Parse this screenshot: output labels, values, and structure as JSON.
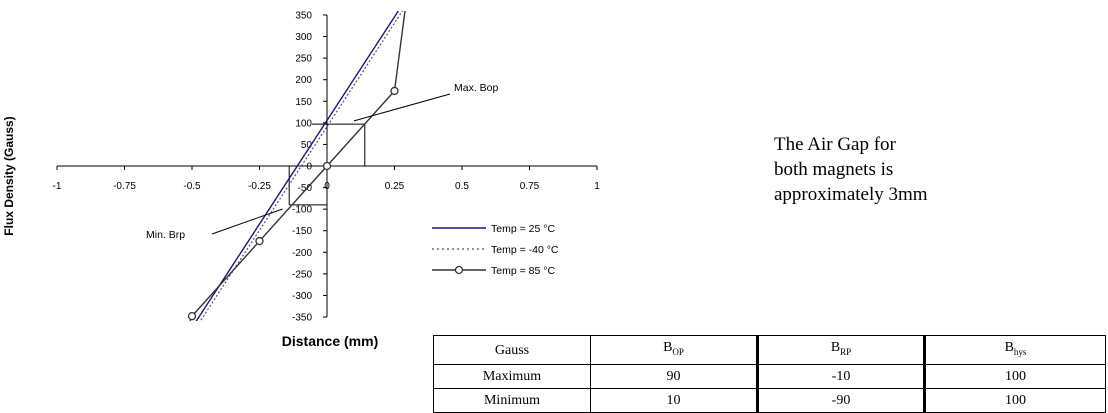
{
  "chart_data": {
    "type": "line",
    "xlabel": "Distance (mm)",
    "ylabel": "Flux Density (Gauss)",
    "xlim": [
      -1,
      1
    ],
    "ylim": [
      -350,
      350
    ],
    "x_ticks": [
      "-1",
      "-0.75",
      "-0.5",
      "-0.25",
      "0",
      "0.25",
      "0.5",
      "0.75",
      "1"
    ],
    "x_tick_values": [
      -1,
      -0.75,
      -0.5,
      -0.25,
      0,
      0.25,
      0.5,
      0.75,
      1
    ],
    "y_ticks": [
      "350",
      "300",
      "250",
      "200",
      "150",
      "100",
      "50",
      "0",
      "-50",
      "-100",
      "-150",
      "-200",
      "-250",
      "-300",
      "-350"
    ],
    "y_tick_values": [
      350,
      300,
      250,
      200,
      150,
      100,
      50,
      0,
      -50,
      -100,
      -150,
      -200,
      -250,
      -300,
      -350
    ],
    "legend_position": "bottom-right",
    "series": [
      {
        "name": "Temp = 25   °C",
        "style": "solid",
        "color": "#1a1a7a",
        "x": [
          -0.49,
          0.27
        ],
        "y": [
          -365,
          365
        ]
      },
      {
        "name": "Temp = -40   °C",
        "style": "dotted",
        "color": "#555555",
        "x": [
          -0.475,
          0.285
        ],
        "y": [
          -365,
          365
        ]
      },
      {
        "name": "Temp = 85   °C",
        "style": "solid-markers",
        "color": "#333333",
        "x": [
          -0.51,
          -0.5,
          -0.25,
          0,
          0.25,
          0.29
        ],
        "y": [
          -365,
          -348,
          -174,
          0,
          174,
          365
        ],
        "markers": [
          [
            -0.5,
            -348
          ],
          [
            -0.25,
            -174
          ],
          [
            0,
            0
          ],
          [
            0.25,
            174
          ]
        ]
      }
    ],
    "annotations": [
      {
        "text": "Max. Bop",
        "arrow_to": [
          0.1,
          100
        ]
      },
      {
        "text": "Min. Brp",
        "arrow_to": [
          -0.15,
          -95
        ]
      }
    ],
    "guides": {
      "max_bop": {
        "y": 97,
        "x": 0.14
      },
      "min_brp": {
        "y": -90,
        "x": -0.14
      }
    }
  },
  "note": {
    "line1": "The Air Gap for",
    "line2": "both magnets is",
    "line3": "approximately 3mm"
  },
  "table": {
    "headers": [
      "Gauss",
      "B",
      "B",
      "B"
    ],
    "header_subscripts": [
      "",
      "OP",
      "RP",
      "hys"
    ],
    "rows": [
      [
        "Maximum",
        "90",
        "-10",
        "100"
      ],
      [
        "Minimum",
        "10",
        "-90",
        "100"
      ]
    ]
  }
}
